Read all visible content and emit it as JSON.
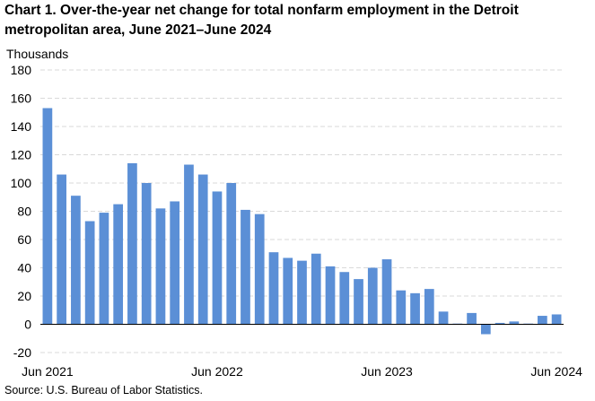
{
  "header": {
    "title_line1": "Chart 1. Over-the-year net change for total nonfarm employment in the Detroit",
    "title_line2": "metropolitan area, June 2021–June 2024"
  },
  "footer": {
    "source": "Source: U.S. Bureau of Labor Statistics."
  },
  "chart_data": {
    "type": "bar",
    "ylabel": "Thousands",
    "ylim": [
      -20,
      180
    ],
    "yticks": [
      -20,
      0,
      20,
      40,
      60,
      80,
      100,
      120,
      140,
      160,
      180
    ],
    "grid": true,
    "bar_color": "#5b8fd6",
    "grid_color": "#d9d9d9",
    "categories": [
      "Jun 2021",
      "Jul 2021",
      "Aug 2021",
      "Sep 2021",
      "Oct 2021",
      "Nov 2021",
      "Dec 2021",
      "Jan 2022",
      "Feb 2022",
      "Mar 2022",
      "Apr 2022",
      "May 2022",
      "Jun 2022",
      "Jul 2022",
      "Aug 2022",
      "Sep 2022",
      "Oct 2022",
      "Nov 2022",
      "Dec 2022",
      "Jan 2023",
      "Feb 2023",
      "Mar 2023",
      "Apr 2023",
      "May 2023",
      "Jun 2023",
      "Jul 2023",
      "Aug 2023",
      "Sep 2023",
      "Oct 2023",
      "Nov 2023",
      "Dec 2023",
      "Jan 2024",
      "Feb 2024",
      "Mar 2024",
      "Apr 2024",
      "May 2024",
      "Jun 2024"
    ],
    "x_tick_labels": [
      {
        "index": 0,
        "label": "Jun 2021"
      },
      {
        "index": 12,
        "label": "Jun 2022"
      },
      {
        "index": 24,
        "label": "Jun 2023"
      },
      {
        "index": 36,
        "label": "Jun 2024"
      }
    ],
    "values": [
      153,
      106,
      91,
      73,
      79,
      85,
      114,
      100,
      82,
      87,
      113,
      106,
      94,
      100,
      81,
      78,
      51,
      47,
      45,
      50,
      41,
      37,
      32,
      40,
      46,
      24,
      22,
      25,
      9,
      0.5,
      8,
      -7,
      1,
      2,
      0.5,
      6,
      7
    ]
  }
}
